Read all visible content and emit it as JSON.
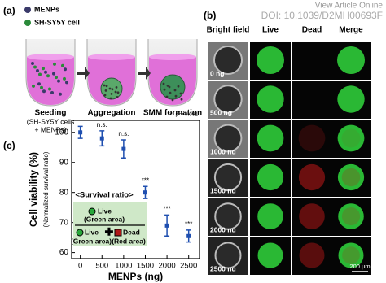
{
  "header": {
    "link": "View Article Online",
    "doi": "DOI: 10.1039/D2MH00693F"
  },
  "panel_a": {
    "label": "(a)",
    "legend": [
      "MENPs",
      "SH-SY5Y cell"
    ],
    "steps": [
      {
        "title": "Seeding",
        "lines": [
          "(SH-SY5Y cells",
          "+ MENPs)"
        ]
      },
      {
        "title": "Aggregation",
        "lines": []
      },
      {
        "title": "SMM formation",
        "lines": []
      }
    ]
  },
  "panel_b": {
    "label": "(b)",
    "columns": [
      "Bright field",
      "Live",
      "Dead",
      "Merge"
    ],
    "rows": [
      "0 ng",
      "500 ng",
      "1000 ng",
      "1500 ng",
      "2000 ng",
      "2500 ng"
    ],
    "scale_bar": "200 μm"
  },
  "chart_data": {
    "type": "scatter",
    "panel_label": "(c)",
    "ylabel": "Cell viability (%)",
    "ylabel_sub": "(Normalized survival ratio)",
    "xlabel": "MENPs (ng)",
    "x": [
      0,
      500,
      1000,
      1500,
      2000,
      2500
    ],
    "series": [
      {
        "name": "Cell viability",
        "color": "#1f4fb0",
        "values": [
          100,
          98,
          94.5,
          80,
          69,
          65.5
        ],
        "errors": [
          2,
          2.5,
          3,
          2,
          3.5,
          2
        ]
      }
    ],
    "significance": [
      null,
      "n.s.",
      "n.s.",
      "***",
      "***",
      "***"
    ],
    "p_note": "*** p<<0.001",
    "xlim": [
      -200,
      2750
    ],
    "xticks": [
      0,
      500,
      1000,
      1500,
      2000,
      2500
    ],
    "ylim": [
      58,
      104
    ],
    "yticks": [
      60,
      70,
      80,
      90,
      100
    ],
    "inset": {
      "title": "<Survival ratio>",
      "numerator": [
        "Live",
        "(Green area)"
      ],
      "denominator": [
        [
          "Live",
          "(Green area)"
        ],
        [
          "Dead",
          "(Red area)"
        ]
      ]
    }
  }
}
